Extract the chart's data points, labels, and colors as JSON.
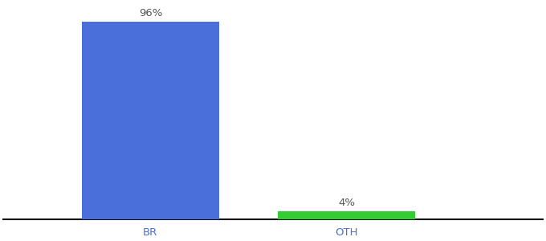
{
  "categories": [
    "BR",
    "OTH"
  ],
  "values": [
    96,
    4
  ],
  "bar_colors": [
    "#4a6fdb",
    "#33cc33"
  ],
  "labels": [
    "96%",
    "4%"
  ],
  "background_color": "#ffffff",
  "ylim": [
    0,
    105
  ],
  "bar_width": 0.28,
  "label_fontsize": 9.5,
  "tick_fontsize": 9.5,
  "tick_color": "#4a6fdb",
  "label_color": "#555555",
  "spine_color": "#111111",
  "x_positions": [
    0.3,
    0.7
  ],
  "xlim": [
    0.0,
    1.1
  ]
}
